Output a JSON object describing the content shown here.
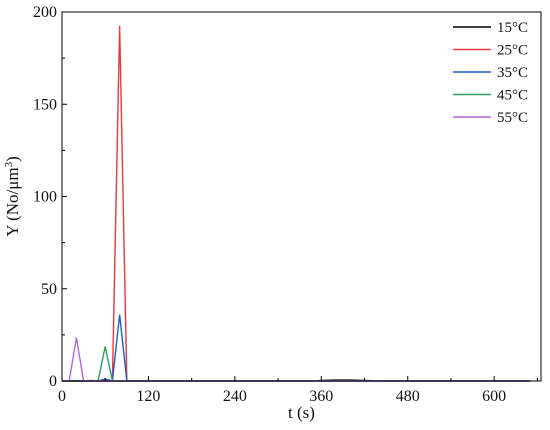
{
  "chart_data": {
    "type": "line",
    "title": "",
    "xlabel": "t (s)",
    "ylabel_main": "Y (No/μm",
    "ylabel_sup": "3",
    "ylabel_tail": ")",
    "xlim": [
      0,
      665
    ],
    "ylim": [
      0,
      200
    ],
    "xticks": [
      0,
      120,
      240,
      360,
      480,
      600
    ],
    "yticks": [
      0,
      50,
      100,
      150,
      200
    ],
    "grid": false,
    "legend_position": "top-right",
    "series": [
      {
        "name": "15°C",
        "color": "#000000",
        "x": [
          0,
          10,
          20,
          30,
          40,
          50,
          60,
          70,
          80,
          90,
          100,
          150,
          200,
          250,
          300,
          350,
          360,
          380,
          400,
          420,
          450,
          500,
          550,
          600,
          650
        ],
        "y": [
          0,
          0,
          0,
          0,
          0,
          0,
          0,
          0,
          0,
          0,
          0,
          0,
          0,
          0,
          0,
          0,
          0.3,
          0.5,
          0.5,
          0.3,
          0,
          0,
          0,
          0,
          0
        ]
      },
      {
        "name": "25°C",
        "color": "#e8383d",
        "x": [
          0,
          10,
          20,
          30,
          40,
          50,
          60,
          70,
          80,
          90,
          100,
          150,
          200,
          250,
          300,
          350,
          400,
          450,
          500,
          550,
          600,
          650
        ],
        "y": [
          0,
          0,
          0,
          0,
          0.3,
          0,
          0,
          0,
          192.5,
          0,
          0,
          0,
          0,
          0,
          0,
          0,
          0,
          0,
          0,
          0,
          0,
          0
        ]
      },
      {
        "name": "35°C",
        "color": "#1f5fbf",
        "x": [
          0,
          10,
          20,
          30,
          40,
          50,
          60,
          70,
          80,
          90,
          100,
          150,
          200,
          250,
          300,
          350,
          400,
          450,
          500,
          550,
          600,
          650
        ],
        "y": [
          0,
          0,
          0,
          0,
          0,
          0,
          1,
          0,
          36,
          0,
          0,
          0,
          0,
          0,
          0,
          0,
          0,
          0,
          0,
          0,
          0,
          0
        ]
      },
      {
        "name": "45°C",
        "color": "#2e9e5b",
        "x": [
          0,
          10,
          20,
          30,
          40,
          50,
          60,
          70,
          80,
          90,
          100,
          150,
          200,
          250,
          300,
          350,
          400,
          450,
          500,
          550,
          600,
          650
        ],
        "y": [
          0,
          0,
          0,
          0,
          0,
          0,
          18.7,
          0,
          0,
          0,
          0,
          0,
          0,
          0,
          0,
          0,
          0,
          0,
          0,
          0,
          0,
          0
        ]
      },
      {
        "name": "55°C",
        "color": "#b366d9",
        "x": [
          0,
          10,
          20,
          30,
          40,
          50,
          60,
          70,
          80,
          90,
          100,
          150,
          200,
          250,
          300,
          350,
          400,
          450,
          500,
          550,
          600,
          650
        ],
        "y": [
          0,
          0,
          23.5,
          0,
          0,
          0,
          0,
          0,
          0,
          0,
          0,
          0,
          0,
          0,
          0,
          0,
          0,
          0,
          0,
          0,
          0,
          0
        ]
      }
    ]
  }
}
